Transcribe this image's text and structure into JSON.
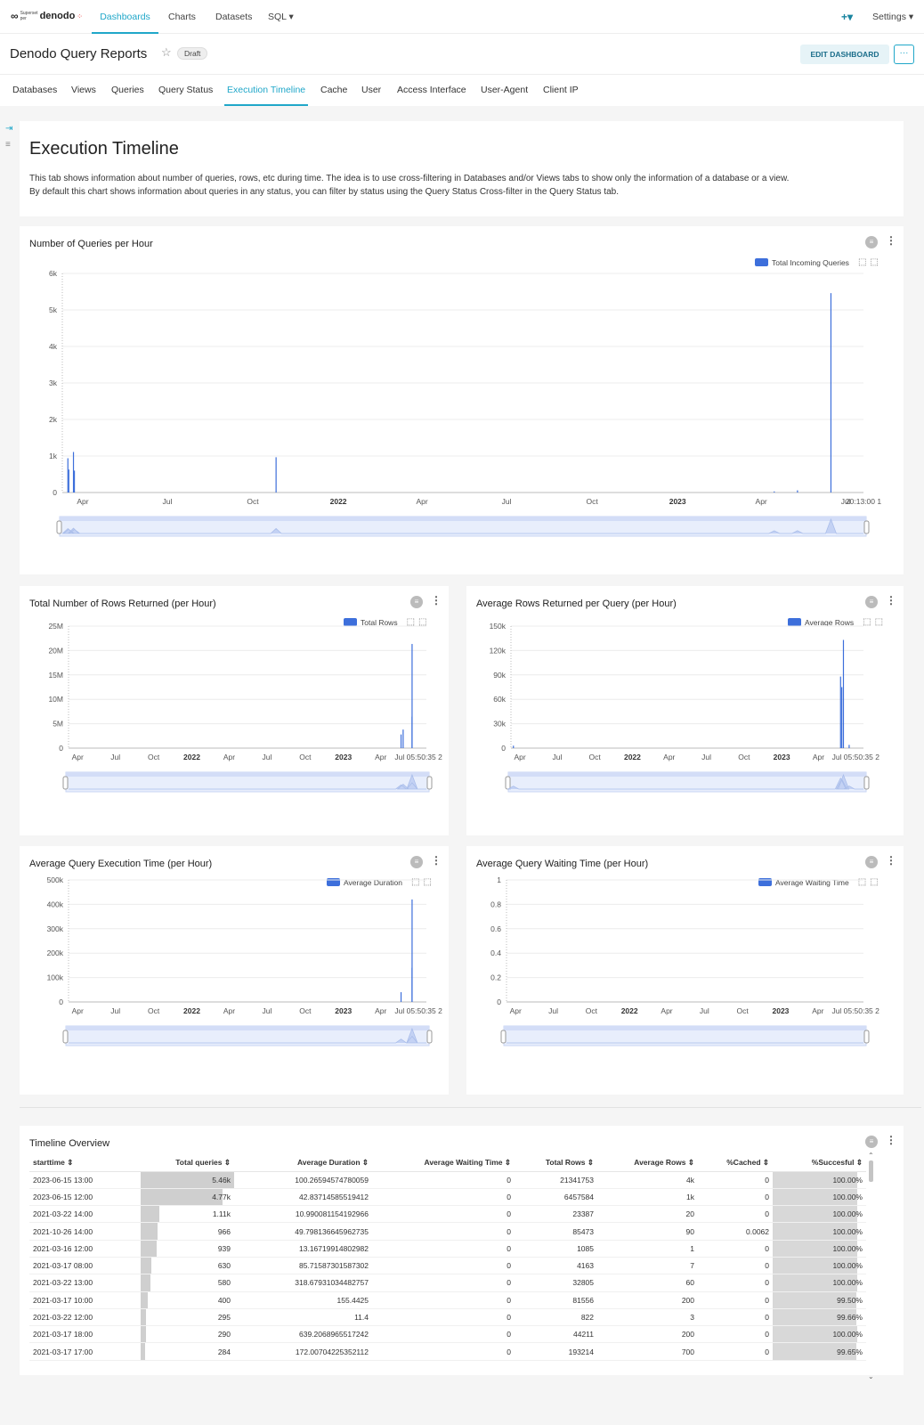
{
  "app": {
    "logo_superset": "Superset",
    "logo_per": "per",
    "logo_brand": "denodo",
    "nav": [
      "Dashboards",
      "Charts",
      "Datasets",
      "SQL ▾"
    ],
    "plus": "+▾",
    "settings": "Settings ▾"
  },
  "header": {
    "title": "Denodo Query Reports",
    "badge": "Draft",
    "edit_button": "EDIT DASHBOARD",
    "more_button": "···"
  },
  "tabs": [
    "Databases",
    "Views",
    "Queries",
    "Query Status",
    "Execution Timeline",
    "Cache",
    "User",
    "Access Interface",
    "User-Agent",
    "Client IP"
  ],
  "active_tab": "Execution Timeline",
  "intro": {
    "title": "Execution Timeline",
    "line1": "This tab shows information about number of queries, rows, etc during time. The idea is to use cross-filtering in Databases and/or Views tabs to show only the information of a database or a view.",
    "line2": "By default this chart shows information about queries in any status, you can filter by status using the Query Status Cross-filter in the Query Status tab."
  },
  "colors": {
    "accent": "#20a7c9",
    "series": "#3d6fdb"
  },
  "chart_data": [
    {
      "type": "bar",
      "title": "Number of Queries per Hour",
      "series": [
        {
          "name": "Total Incoming Queries",
          "x": [
            "2021-03-16",
            "2021-03-17",
            "2021-03-22",
            "2021-03-23",
            "2021-10-26",
            "2023-04-15",
            "2023-05-10",
            "2023-06-15"
          ],
          "values": [
            939,
            630,
            1110,
            600,
            966,
            30,
            60,
            5460
          ]
        }
      ],
      "x_ticks": [
        "Apr",
        "Jul",
        "Oct",
        "2022",
        "Apr",
        "Jul",
        "Oct",
        "2023",
        "Apr",
        "Jul",
        "20:13:00 1"
      ],
      "y_ticks": [
        "0",
        "1k",
        "2k",
        "3k",
        "4k",
        "5k",
        "6k"
      ],
      "ylim": [
        0,
        6000
      ]
    },
    {
      "type": "bar",
      "title": "Total Number of Rows Returned (per Hour)",
      "series": [
        {
          "name": "Total Rows",
          "x": [
            "2023-05-20",
            "2023-05-25",
            "2023-06-15 12:00",
            "2023-06-15 13:00"
          ],
          "values": [
            2800000,
            3800000,
            6457584,
            21341753
          ]
        }
      ],
      "x_ticks": [
        "Apr",
        "Jul",
        "Oct",
        "2022",
        "Apr",
        "Jul",
        "Oct",
        "2023",
        "Apr",
        "Jul 05:50:35 2"
      ],
      "y_ticks": [
        "0",
        "5M",
        "10M",
        "15M",
        "20M",
        "25M"
      ],
      "ylim": [
        0,
        25000000
      ]
    },
    {
      "type": "bar",
      "title": "Average Rows Returned per Query (per Hour)",
      "series": [
        {
          "name": "Average Rows",
          "x": [
            "2021-03-16",
            "2023-05-25",
            "2023-05-28",
            "2023-06-01",
            "2023-06-15"
          ],
          "values": [
            3000,
            88000,
            75000,
            133000,
            4000
          ]
        }
      ],
      "x_ticks": [
        "Apr",
        "Jul",
        "Oct",
        "2022",
        "Apr",
        "Jul",
        "Oct",
        "2023",
        "Apr",
        "Jul 05:50:35 2"
      ],
      "y_ticks": [
        "0",
        "30k",
        "60k",
        "90k",
        "120k",
        "150k"
      ],
      "ylim": [
        0,
        150000
      ]
    },
    {
      "type": "bar",
      "title": "Average Query Execution Time (per Hour)",
      "series": [
        {
          "name": "Average Duration",
          "x": [
            "2023-05-20",
            "2023-06-15 12:00",
            "2023-06-15 13:00"
          ],
          "values": [
            40000,
            140000,
            420000
          ]
        }
      ],
      "x_ticks": [
        "Apr",
        "Jul",
        "Oct",
        "2022",
        "Apr",
        "Jul",
        "Oct",
        "2023",
        "Apr",
        "Jul 05:50:35 2"
      ],
      "y_ticks": [
        "0",
        "100k",
        "200k",
        "300k",
        "400k",
        "500k"
      ],
      "ylim": [
        0,
        500000
      ]
    },
    {
      "type": "bar",
      "title": "Average Query Waiting Time (per Hour)",
      "series": [
        {
          "name": "Average Waiting Time",
          "x": [],
          "values": []
        }
      ],
      "x_ticks": [
        "Apr",
        "Jul",
        "Oct",
        "2022",
        "Apr",
        "Jul",
        "Oct",
        "2023",
        "Apr",
        "Jul 05:50:35 2"
      ],
      "y_ticks": [
        "0",
        "0.2",
        "0.4",
        "0.6",
        "0.8",
        "1"
      ],
      "ylim": [
        0,
        1
      ]
    }
  ],
  "table": {
    "title": "Timeline Overview",
    "columns": [
      "starttime",
      "Total queries",
      "Average Duration",
      "Average Waiting Time",
      "Total Rows",
      "Average Rows",
      "%Cached",
      "%Succesful"
    ],
    "rows": [
      [
        "2023-06-15 13:00",
        "5.46k",
        "100.26594574780059",
        "0",
        "21341753",
        "4k",
        "0",
        "100.00%"
      ],
      [
        "2023-06-15 12:00",
        "4.77k",
        "42.83714585519412",
        "0",
        "6457584",
        "1k",
        "0",
        "100.00%"
      ],
      [
        "2021-03-22 14:00",
        "1.11k",
        "10.990081154192966",
        "0",
        "23387",
        "20",
        "0",
        "100.00%"
      ],
      [
        "2021-10-26 14:00",
        "966",
        "49.798136645962735",
        "0",
        "85473",
        "90",
        "0.0062",
        "100.00%"
      ],
      [
        "2021-03-16 12:00",
        "939",
        "13.16719914802982",
        "0",
        "1085",
        "1",
        "0",
        "100.00%"
      ],
      [
        "2021-03-17 08:00",
        "630",
        "85.71587301587302",
        "0",
        "4163",
        "7",
        "0",
        "100.00%"
      ],
      [
        "2021-03-22 13:00",
        "580",
        "318.67931034482757",
        "0",
        "32805",
        "60",
        "0",
        "100.00%"
      ],
      [
        "2021-03-17 10:00",
        "400",
        "155.4425",
        "0",
        "81556",
        "200",
        "0",
        "99.50%"
      ],
      [
        "2021-03-22 12:00",
        "295",
        "11.4",
        "0",
        "822",
        "3",
        "0",
        "99.66%"
      ],
      [
        "2021-03-17 18:00",
        "290",
        "639.2068965517242",
        "0",
        "44211",
        "200",
        "0",
        "100.00%"
      ],
      [
        "2021-03-17 17:00",
        "284",
        "172.00704225352112",
        "0",
        "193214",
        "700",
        "0",
        "99.65%"
      ]
    ],
    "total_queries_values": [
      5460,
      4770,
      1110,
      966,
      939,
      630,
      580,
      400,
      295,
      290,
      284
    ],
    "succesful_values": [
      100,
      100,
      100,
      100,
      100,
      100,
      100,
      99.5,
      99.66,
      100,
      99.65
    ]
  }
}
